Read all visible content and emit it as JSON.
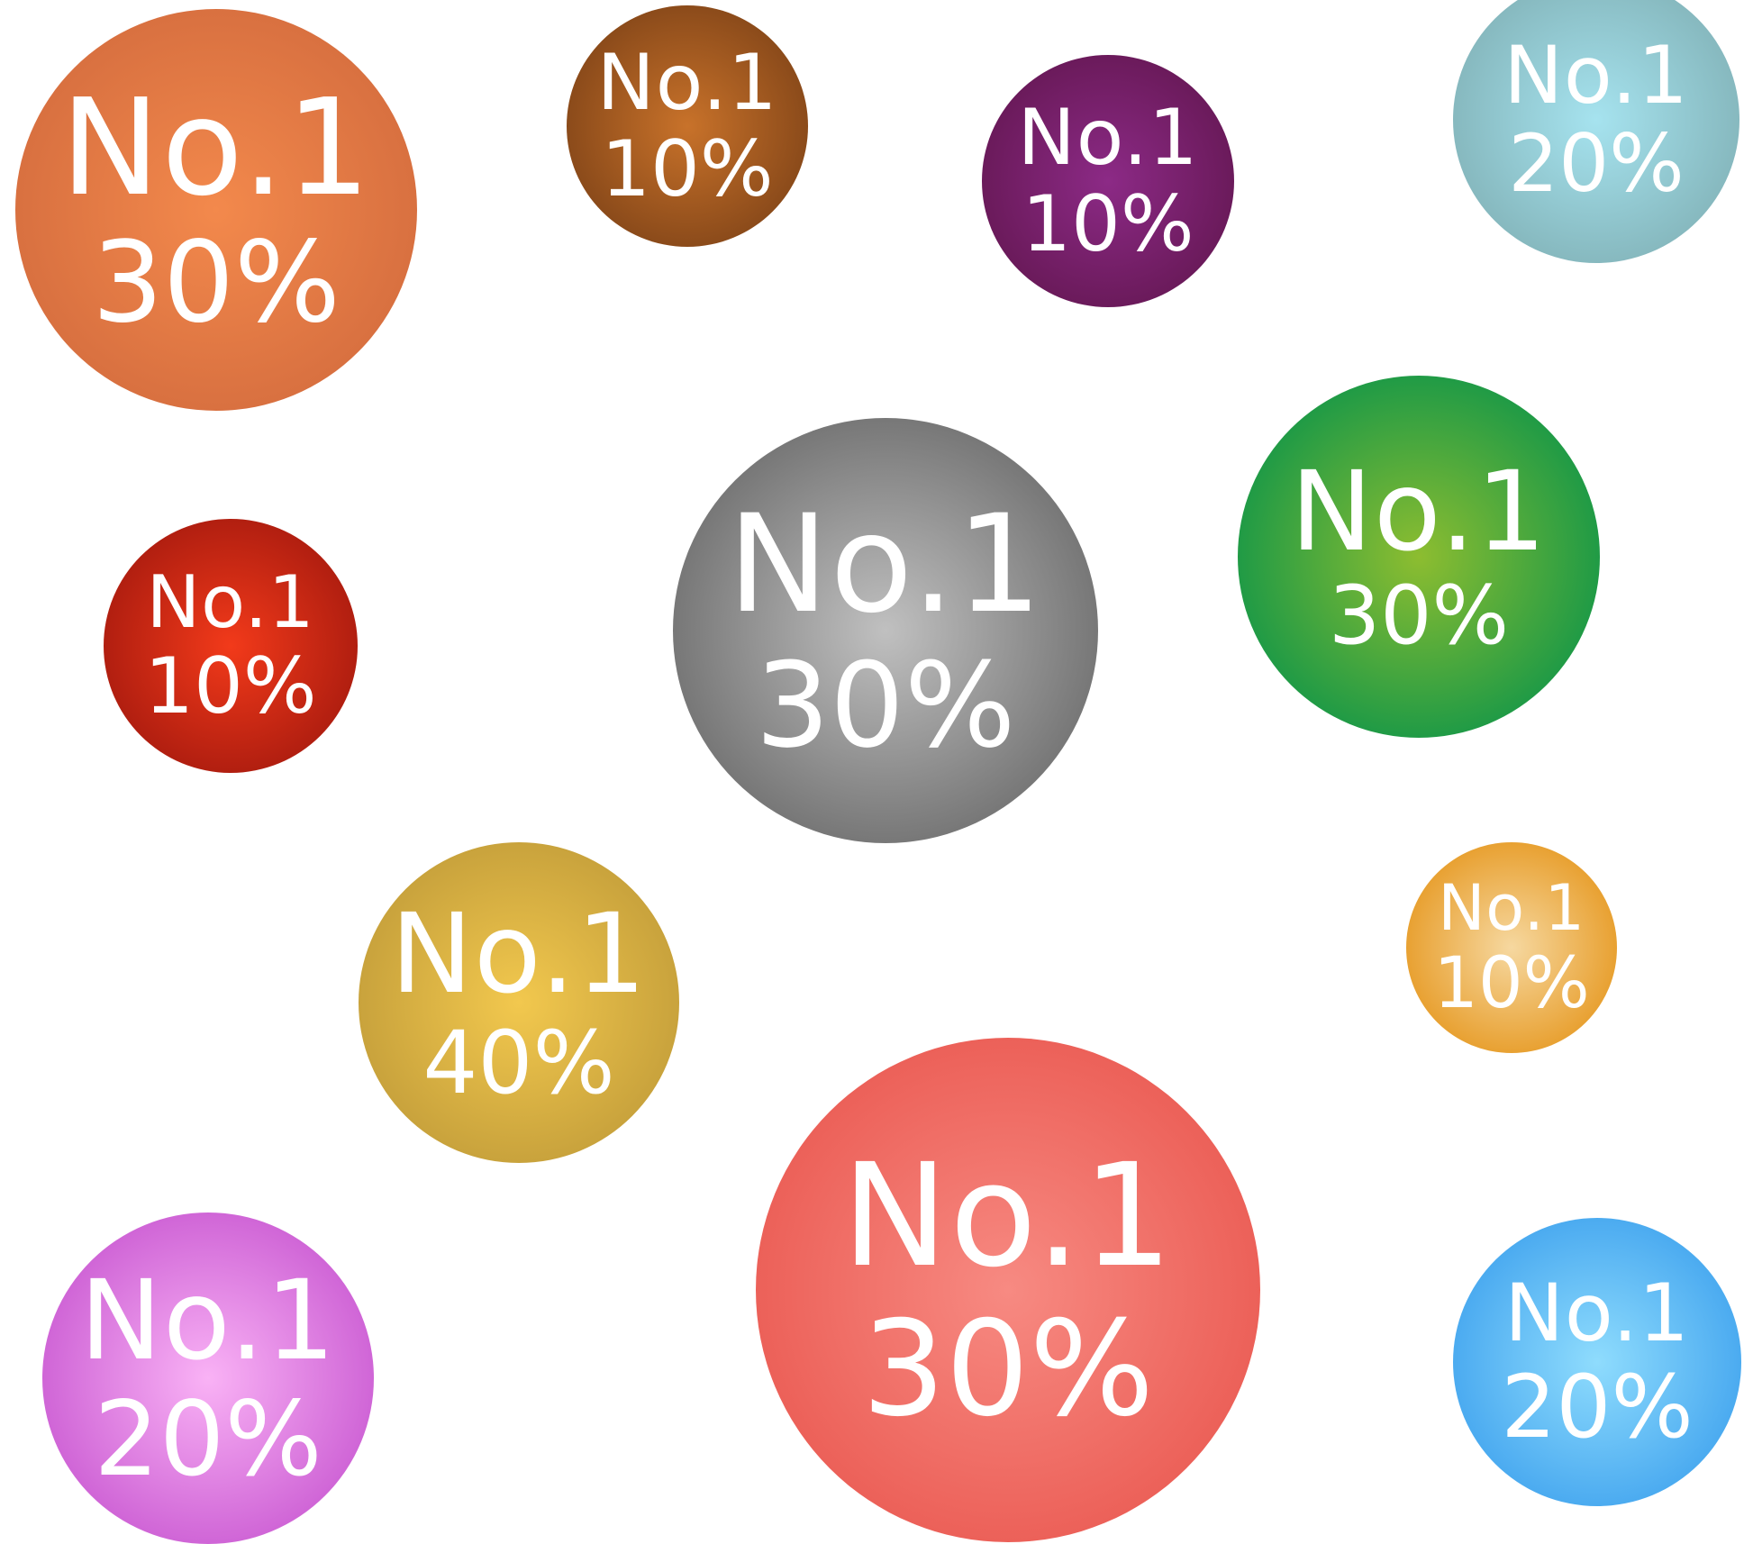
{
  "badges": [
    {
      "id": "b-orange",
      "title": "No.1",
      "value": "30%",
      "color": "#d87040",
      "highlight": "#f3894c"
    },
    {
      "id": "b-brown",
      "title": "No.1",
      "value": "10%",
      "color": "#8a4a1a",
      "highlight": "#c8722a"
    },
    {
      "id": "b-purple",
      "title": "No.1",
      "value": "10%",
      "color": "#6a1a5a",
      "highlight": "#8c2a86"
    },
    {
      "id": "b-teal",
      "title": "No.1",
      "value": "20%",
      "color": "#86b8be",
      "highlight": "#a6e3ef"
    },
    {
      "id": "b-red",
      "title": "No.1",
      "value": "10%",
      "color": "#b01e10",
      "highlight": "#f23a1a"
    },
    {
      "id": "b-gray",
      "title": "No.1",
      "value": "30%",
      "color": "#767676",
      "highlight": "#c0c0c0"
    },
    {
      "id": "b-green",
      "title": "No.1",
      "value": "30%",
      "color": "#1e9a46",
      "highlight": "#8dbd30"
    },
    {
      "id": "b-gold",
      "title": "No.1",
      "value": "40%",
      "color": "#c8a23c",
      "highlight": "#f2c84e"
    },
    {
      "id": "b-amber",
      "title": "No.1",
      "value": "10%",
      "color": "#e8a030",
      "highlight": "#f6d8a0"
    },
    {
      "id": "b-coral",
      "title": "No.1",
      "value": "30%",
      "color": "#ec6058",
      "highlight": "#f78a82"
    },
    {
      "id": "b-magenta",
      "title": "No.1",
      "value": "20%",
      "color": "#cf64d6",
      "highlight": "#f9b2f5"
    },
    {
      "id": "b-blue",
      "title": "No.1",
      "value": "20%",
      "color": "#4aaaf0",
      "highlight": "#8fdcfd"
    }
  ]
}
